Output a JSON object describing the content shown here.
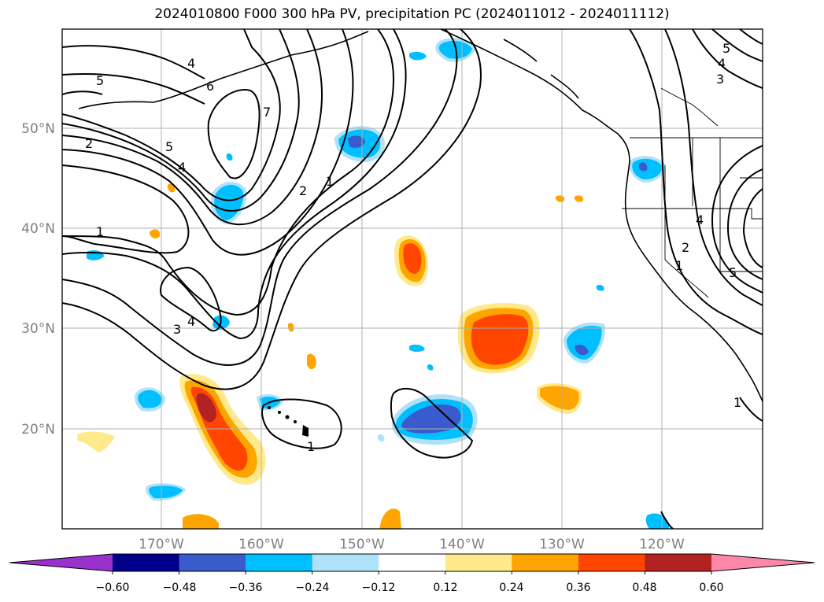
{
  "title": "2024010800 F000 300 hPa PV, precipitation PC (2024011012 - 2024011112)",
  "map": {
    "lat_labels": [
      "50°N",
      "40°N",
      "30°N",
      "20°N"
    ],
    "lon_labels": [
      "170°W",
      "160°W",
      "150°W",
      "140°W",
      "130°W",
      "120°W"
    ],
    "lat_values": [
      50,
      40,
      30,
      20
    ],
    "lon_values": [
      -170,
      -160,
      -150,
      -140,
      -130,
      -120
    ],
    "extent": {
      "lon": [
        -180,
        -110
      ],
      "lat": [
        10,
        60
      ]
    },
    "grid": true,
    "contour_labels": [
      "4",
      "5",
      "6",
      "7",
      "5",
      "4",
      "2",
      "1",
      "2",
      "1",
      "4",
      "3",
      "1",
      "5",
      "4",
      "3",
      "4",
      "2",
      "1",
      "5",
      "1"
    ]
  },
  "colorbar": {
    "ticks": [
      "−0.60",
      "−0.48",
      "−0.36",
      "−0.24",
      "−0.12",
      "0.12",
      "0.24",
      "0.36",
      "0.48",
      "0.60"
    ],
    "tick_values": [
      -0.6,
      -0.48,
      -0.36,
      -0.24,
      -0.12,
      0.12,
      0.24,
      0.36,
      0.48,
      0.6
    ],
    "colors": [
      "#9932CC",
      "#00008B",
      "#3A5BCC",
      "#00BFFF",
      "#ADE2F8",
      "#FFFFFF",
      "#FFE98A",
      "#FFA500",
      "#FF4500",
      "#B22222",
      "#FF88AA"
    ],
    "extend": "both"
  }
}
